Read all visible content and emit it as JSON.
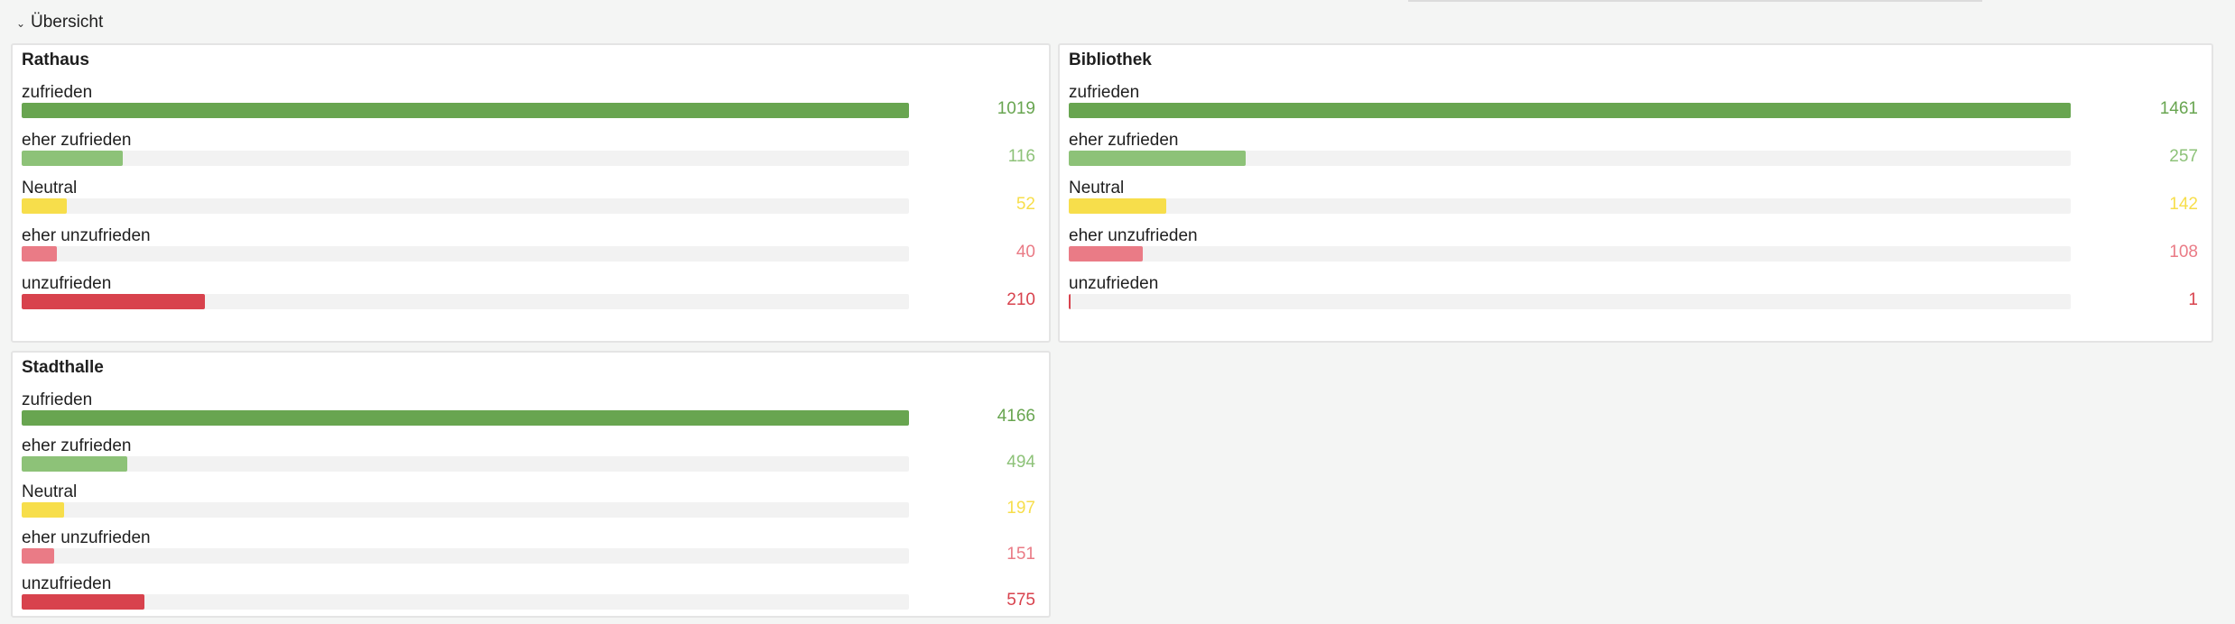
{
  "section": {
    "title": "Übersicht",
    "expanded": true
  },
  "colors": {
    "zufrieden": "#68a550",
    "eher_zufrieden": "#8dc278",
    "neutral": "#f7de4b",
    "eher_unzufrieden": "#ea7b86",
    "unzufrieden": "#d8424d"
  },
  "panels": [
    {
      "title": "Rathaus",
      "rows": [
        {
          "label": "zufrieden",
          "value": "1019",
          "key": "zufrieden"
        },
        {
          "label": "eher zufrieden",
          "value": "116",
          "key": "eher_zufrieden"
        },
        {
          "label": "Neutral",
          "value": "52",
          "key": "neutral"
        },
        {
          "label": "eher unzufrieden",
          "value": "40",
          "key": "eher_unzufrieden"
        },
        {
          "label": "unzufrieden",
          "value": "210",
          "key": "unzufrieden"
        }
      ]
    },
    {
      "title": "Bibliothek",
      "rows": [
        {
          "label": "zufrieden",
          "value": "1461",
          "key": "zufrieden"
        },
        {
          "label": "eher zufrieden",
          "value": "257",
          "key": "eher_zufrieden"
        },
        {
          "label": "Neutral",
          "value": "142",
          "key": "neutral"
        },
        {
          "label": "eher unzufrieden",
          "value": "108",
          "key": "eher_unzufrieden"
        },
        {
          "label": "unzufrieden",
          "value": "1",
          "key": "unzufrieden"
        }
      ]
    },
    {
      "title": "Stadthalle",
      "rows": [
        {
          "label": "zufrieden",
          "value": "4166",
          "key": "zufrieden"
        },
        {
          "label": "eher zufrieden",
          "value": "494",
          "key": "eher_zufrieden"
        },
        {
          "label": "Neutral",
          "value": "197",
          "key": "neutral"
        },
        {
          "label": "eher unzufrieden",
          "value": "151",
          "key": "eher_unzufrieden"
        },
        {
          "label": "unzufrieden",
          "value": "575",
          "key": "unzufrieden"
        }
      ]
    }
  ]
}
